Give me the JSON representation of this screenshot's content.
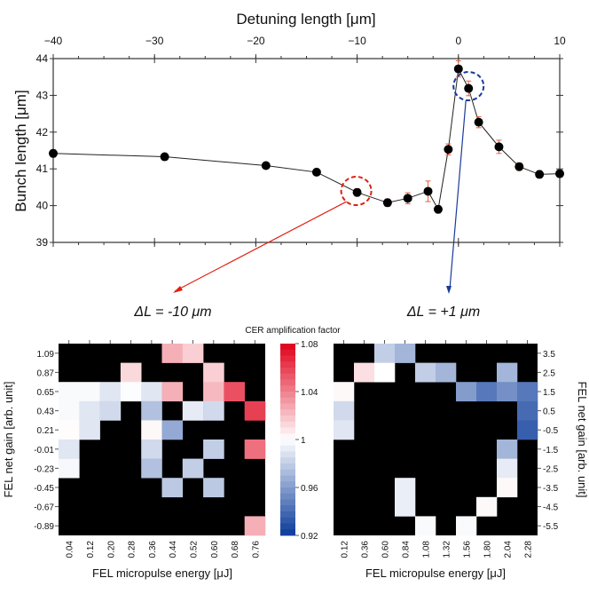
{
  "chart_data": [
    {
      "type": "line",
      "xlabel": "Detuning length [μm]",
      "ylabel": "Bunch length [μm]",
      "xlim": [
        -40,
        10
      ],
      "ylim": [
        39,
        44
      ],
      "xticks": [
        -40,
        -30,
        -20,
        -10,
        0,
        10
      ],
      "xtick_labels": [
        "−40",
        "−30",
        "−20",
        "−10",
        "0",
        "10"
      ],
      "yticks": [
        39,
        40,
        41,
        42,
        43,
        44
      ],
      "grid": false,
      "x_axis_position": "top",
      "marker_color": "#000000",
      "errorbar_color": "#e06040",
      "series": [
        {
          "x": [
            -40,
            -29,
            -19,
            -14,
            -10,
            -7,
            -5,
            -3,
            -2,
            -1,
            0,
            1,
            2,
            4,
            6,
            8,
            10
          ],
          "y": [
            41.42,
            41.33,
            41.09,
            40.91,
            40.36,
            40.08,
            40.2,
            40.39,
            39.9,
            41.53,
            43.72,
            43.19,
            42.27,
            41.6,
            41.06,
            40.85,
            40.87
          ],
          "yerr": [
            0.1,
            0.08,
            0.08,
            0.08,
            0.1,
            0.1,
            0.15,
            0.28,
            0.1,
            0.15,
            0.22,
            0.2,
            0.15,
            0.18,
            0.1,
            0.1,
            0.1
          ]
        }
      ],
      "annotations": [
        {
          "text": "ΔL = -10 μm",
          "x": -10,
          "y": 40.4,
          "color": "#e02010"
        },
        {
          "text": "ΔL = +1 μm",
          "x": 1,
          "y": 43.25,
          "color": "#1a3a9a"
        }
      ]
    },
    {
      "type": "heatmap",
      "xlabel": "FEL micropulse energy [μJ]",
      "ylabel": "FEL net gain [arb. unit]",
      "x_categories": [
        "0.04",
        "0.12",
        "0.20",
        "0.28",
        "0.36",
        "0.44",
        "0.52",
        "0.60",
        "0.68",
        "0.76"
      ],
      "y_categories": [
        "1.09",
        "0.87",
        "0.65",
        "0.43",
        "0.21",
        "-0.01",
        "-0.23",
        "-0.45",
        "-0.67",
        "-0.89"
      ],
      "missing_color": "#000000",
      "values": [
        [
          null,
          null,
          null,
          null,
          null,
          1.025,
          1.015,
          null,
          null,
          null
        ],
        [
          null,
          null,
          null,
          1.012,
          null,
          null,
          null,
          1.015,
          null,
          null
        ],
        [
          0.998,
          0.998,
          0.99,
          0.999,
          0.99,
          1.025,
          null,
          1.022,
          1.055,
          null
        ],
        [
          0.998,
          0.99,
          0.985,
          null,
          0.975,
          null,
          0.992,
          0.985,
          null,
          1.06
        ],
        [
          1.001,
          0.99,
          null,
          null,
          1.002,
          0.965,
          null,
          null,
          null,
          null
        ],
        [
          0.99,
          null,
          null,
          null,
          0.985,
          null,
          null,
          0.98,
          null,
          1.045
        ],
        [
          0.997,
          null,
          null,
          null,
          0.975,
          null,
          0.98,
          null,
          null,
          null
        ],
        [
          null,
          null,
          null,
          null,
          null,
          0.978,
          null,
          0.978,
          null,
          null
        ],
        [
          null,
          null,
          null,
          null,
          null,
          null,
          null,
          null,
          null,
          null
        ],
        [
          null,
          null,
          null,
          null,
          null,
          null,
          null,
          null,
          null,
          1.025
        ]
      ]
    },
    {
      "type": "heatmap",
      "xlabel": "FEL micropulse energy [μJ]",
      "ylabel": "FEL net gain [arb. unit]",
      "y_axis_position": "right",
      "x_categories": [
        "0.12",
        "0.36",
        "0.60",
        "0.84",
        "1.08",
        "1.32",
        "1.56",
        "1.80",
        "2.04",
        "2.28"
      ],
      "y_categories": [
        "3.5",
        "2.5",
        "1.5",
        "0.5",
        "-0.5",
        "-1.5",
        "-2.5",
        "-3.5",
        "-4.5",
        "-5.5"
      ],
      "missing_color": "#000000",
      "values": [
        [
          null,
          null,
          0.98,
          0.97,
          null,
          null,
          null,
          null,
          null,
          null
        ],
        [
          null,
          1.01,
          1.0,
          null,
          0.98,
          0.97,
          null,
          null,
          0.97,
          null
        ],
        [
          1.002,
          null,
          null,
          null,
          null,
          null,
          0.96,
          0.945,
          0.955,
          0.945
        ],
        [
          0.985,
          null,
          null,
          null,
          null,
          null,
          null,
          null,
          null,
          0.94
        ],
        [
          0.99,
          null,
          null,
          null,
          null,
          null,
          null,
          null,
          null,
          0.935
        ],
        [
          null,
          null,
          null,
          null,
          null,
          null,
          null,
          null,
          0.97,
          null
        ],
        [
          null,
          null,
          null,
          null,
          null,
          null,
          null,
          null,
          0.992,
          null
        ],
        [
          null,
          null,
          null,
          0.993,
          null,
          null,
          null,
          null,
          1.002,
          null
        ],
        [
          null,
          null,
          null,
          0.993,
          null,
          null,
          null,
          1.002,
          null,
          null
        ],
        [
          null,
          null,
          null,
          null,
          0.998,
          null,
          0.998,
          null,
          null,
          null
        ]
      ]
    }
  ],
  "colorbar": {
    "title": "CER amplification factor",
    "range": [
      0.92,
      1.08
    ],
    "ticks": [
      "1.08",
      "1.04",
      "1",
      "0.96",
      "0.92"
    ],
    "colors": {
      "low": "#0a3a9a",
      "mid": "#ffffff",
      "high": "#e0001a"
    }
  }
}
